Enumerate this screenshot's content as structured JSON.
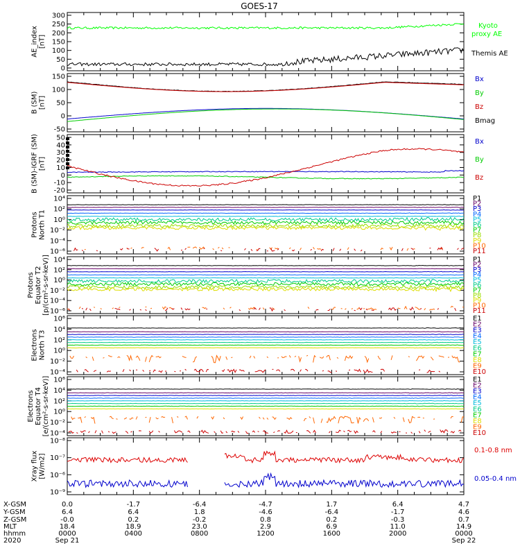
{
  "title": "GOES-17",
  "chart_data": [
    {
      "type": "line",
      "ylabel": [
        "AE_index",
        "[nT]"
      ],
      "ylim": [
        0,
        300
      ],
      "yticks": [
        "300",
        "250",
        "200",
        "150",
        "100",
        "50",
        "0"
      ],
      "series": [
        {
          "name": "Kyoto proxy AE",
          "color": "#00ff00",
          "approx": "~230 nT, rising to ~260 near end"
        },
        {
          "name": "Themis AE",
          "color": "#000000",
          "approx": "~10-20 nT, rising to ~100-120 late in day"
        }
      ]
    },
    {
      "type": "line",
      "ylabel": [
        "B (SM)",
        "[nT]"
      ],
      "ylim": [
        -60,
        150
      ],
      "yticks": [
        "150",
        "100",
        "50",
        "0",
        "-50"
      ],
      "series": [
        {
          "name": "Bx",
          "color": "#0000cc"
        },
        {
          "name": "By",
          "color": "#00cc00"
        },
        {
          "name": "Bz",
          "color": "#cc0000"
        },
        {
          "name": "Bmag",
          "color": "#000000"
        }
      ]
    },
    {
      "type": "line",
      "ylabel": [
        "B (SM)-IGRF (SM)",
        "[nT]"
      ],
      "ylim": [
        -22,
        52
      ],
      "yticks": [
        "50",
        "40",
        "30",
        "20",
        "10",
        "0",
        "-10",
        "-20"
      ],
      "series": [
        {
          "name": "Bx",
          "color": "#0000cc"
        },
        {
          "name": "By",
          "color": "#00cc00"
        },
        {
          "name": "Bz",
          "color": "#cc0000"
        }
      ]
    },
    {
      "type": "line",
      "ylabel": [
        "Protons",
        "North T1"
      ],
      "scale": "log",
      "yticks": [
        "10⁴",
        "10²",
        "10⁰",
        "10⁻²",
        "10⁻⁴",
        "10⁻⁶"
      ],
      "series_names": [
        "P1",
        "P2",
        "P3",
        "P4",
        "P5",
        "P6",
        "P7",
        "P8",
        "P9",
        "P10",
        "P11"
      ]
    },
    {
      "type": "line",
      "ylabel": [
        "Protons",
        "Equator T2",
        "[p/(cm²-s-sr-keV)]"
      ],
      "scale": "log",
      "yticks": [
        "10⁴",
        "10²",
        "10⁰",
        "10⁻²",
        "10⁻⁴",
        "10⁻⁶"
      ],
      "series_names": [
        "P1",
        "P2",
        "P3",
        "P4",
        "P5",
        "P6",
        "P7",
        "P8",
        "P9",
        "P10",
        "P11"
      ]
    },
    {
      "type": "line",
      "ylabel": [
        "Electrons",
        "North T3"
      ],
      "scale": "log",
      "yticks": [
        "10⁶",
        "10⁴",
        "10²",
        "10⁰",
        "10⁻²",
        "10⁻⁴"
      ],
      "series_names": [
        "E1",
        "E2",
        "E3",
        "E4",
        "E5",
        "E6",
        "E7",
        "E8",
        "E9",
        "E10"
      ]
    },
    {
      "type": "line",
      "ylabel": [
        "Electrons",
        "Equator T4",
        "[e/(cm²-s-sr-keV)]"
      ],
      "scale": "log",
      "yticks": [
        "10⁶",
        "10⁴",
        "10²",
        "10⁰",
        "10⁻²",
        "10⁻⁴"
      ],
      "series_names": [
        "E1",
        "E2",
        "E3",
        "E4",
        "E5",
        "E6",
        "E7",
        "E8",
        "E9",
        "E10"
      ]
    },
    {
      "type": "line",
      "ylabel": [
        "Xray flux",
        "[W/m2]"
      ],
      "scale": "log",
      "yticks": [
        "10⁻⁸",
        "10⁻⁷",
        "10⁻⁶",
        "10⁻⁹"
      ],
      "series": [
        {
          "name": "0.1-0.8 nm",
          "color": "#dd0000"
        },
        {
          "name": "0.05-0.4 nm",
          "color": "#0000cc"
        }
      ],
      "gap": "between ~0720 and ~0950 UT"
    }
  ],
  "proton_colors": [
    "#000000",
    "#660066",
    "#0000cc",
    "#0066ff",
    "#00bbdd",
    "#00cc88",
    "#00cc00",
    "#99dd00",
    "#dddd00",
    "#ff6600",
    "#cc0000"
  ],
  "electron_colors": [
    "#000000",
    "#660066",
    "#0000cc",
    "#0066ff",
    "#00bbdd",
    "#00cc88",
    "#00cc00",
    "#dddd00",
    "#ff6600",
    "#cc0000"
  ],
  "footer": {
    "labels": [
      "X-GSM",
      "Y-GSM",
      "Z-GSM",
      "MLT",
      "hhmm",
      "2020"
    ],
    "columns": [
      {
        "X-GSM": "0.0",
        "Y-GSM": "6.4",
        "Z-GSM": "-0.0",
        "MLT": "18.4",
        "hhmm": "0000",
        "date": "Sep 21"
      },
      {
        "X-GSM": "-1.7",
        "Y-GSM": "6.4",
        "Z-GSM": "0.2",
        "MLT": "18.9",
        "hhmm": "0400",
        "date": ""
      },
      {
        "X-GSM": "-6.4",
        "Y-GSM": "1.8",
        "Z-GSM": "-0.2",
        "MLT": "23.0",
        "hhmm": "0800",
        "date": ""
      },
      {
        "X-GSM": "-4.7",
        "Y-GSM": "-4.6",
        "Z-GSM": "0.8",
        "MLT": "2.9",
        "hhmm": "1200",
        "date": ""
      },
      {
        "X-GSM": "1.7",
        "Y-GSM": "-6.4",
        "Z-GSM": "0.2",
        "MLT": "6.9",
        "hhmm": "1600",
        "date": ""
      },
      {
        "X-GSM": "6.4",
        "Y-GSM": "-1.7",
        "Z-GSM": "-0.3",
        "MLT": "11.0",
        "hhmm": "2000",
        "date": ""
      },
      {
        "X-GSM": "4.7",
        "Y-GSM": "4.6",
        "Z-GSM": "0.7",
        "MLT": "14.9",
        "hhmm": "0000",
        "date": "Sep 22"
      }
    ]
  }
}
